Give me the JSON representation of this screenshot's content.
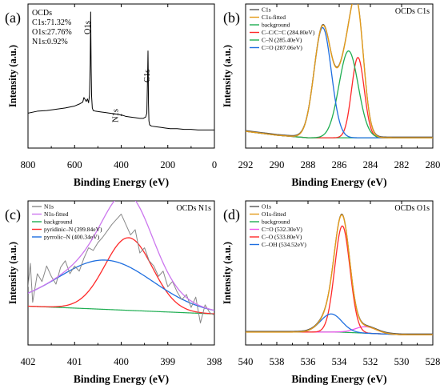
{
  "figure": {
    "panels": [
      {
        "id": "a",
        "label": "(a)",
        "title": "",
        "xlabel": "Binding Energy (eV)",
        "ylabel": "Intensity (a.u.)",
        "xticks": [
          "800",
          "600",
          "400",
          "200",
          "0"
        ],
        "annotations": [
          "OCDs",
          "C1s:71.32%",
          "O1s:27.76%",
          "N1s:0.92%"
        ],
        "peak_labels": [
          {
            "text": "O1s",
            "x": 531
          },
          {
            "text": "N1s",
            "x": 400
          },
          {
            "text": "C1s",
            "x": 285
          }
        ],
        "legend": []
      },
      {
        "id": "b",
        "label": "(b)",
        "title": "OCDs C1s",
        "xlabel": "Binding Energy (eV)",
        "ylabel": "Intensity (a.u.)",
        "xticks": [
          "292",
          "290",
          "288",
          "286",
          "284",
          "282",
          "280"
        ],
        "annotations": [],
        "peak_labels": [],
        "legend": [
          "C1s",
          "C1s-fitted",
          "background",
          "C–C/C=C (284.80eV)",
          "C–N (285.40eV)",
          "C=O (287.06eV)"
        ]
      },
      {
        "id": "c",
        "label": "(c)",
        "title": "OCDs N1s",
        "xlabel": "Binding Energy (eV)",
        "ylabel": "Intensity (a.u.)",
        "xticks": [
          "402",
          "401",
          "400",
          "399",
          "398"
        ],
        "annotations": [],
        "peak_labels": [],
        "legend": [
          "N1s",
          "N1s-fitted",
          "background",
          "pyridinic–N (399.84eV)",
          "pyrrolic–N (400.34eV)"
        ]
      },
      {
        "id": "d",
        "label": "(d)",
        "title": "OCDs O1s",
        "xlabel": "Binding Energy (eV)",
        "ylabel": "Intensity (a.u.)",
        "xticks": [
          "540",
          "538",
          "536",
          "534",
          "532",
          "530",
          "528"
        ],
        "annotations": [],
        "peak_labels": [],
        "legend": [
          "O1s",
          "O1s-fitted",
          "background",
          "C=O (532.30eV)",
          "C–O (533.80eV)",
          "C–OH (534.52eV)"
        ]
      }
    ]
  },
  "chart_data": [
    {
      "type": "line",
      "panel": "a",
      "title": "",
      "xlabel": "Binding Energy (eV)",
      "ylabel": "Intensity (a.u.)",
      "xlim": [
        800,
        0
      ],
      "ylim": [
        0,
        100
      ],
      "x_reversed": true,
      "series": [
        {
          "name": "",
          "color": "#000000",
          "x": [
            800,
            760,
            720,
            680,
            640,
            600,
            580,
            565,
            560,
            550,
            545,
            540,
            536,
            533,
            531,
            529,
            527,
            524,
            520,
            510,
            490,
            470,
            450,
            430,
            410,
            402,
            400,
            398,
            395,
            380,
            360,
            340,
            320,
            305,
            295,
            290,
            288,
            286,
            285,
            284,
            283,
            281,
            278,
            270,
            250,
            230,
            210,
            190,
            160,
            130,
            100,
            70,
            40,
            20,
            0
          ],
          "y": [
            22,
            23.5,
            24,
            25,
            26,
            27.5,
            29,
            30.5,
            34,
            31,
            33,
            30,
            36,
            60,
            100,
            58,
            35,
            26,
            24,
            23.5,
            23,
            22.5,
            22,
            21.5,
            21,
            20.5,
            21,
            20,
            20.5,
            19.5,
            19,
            18.5,
            18,
            18,
            19,
            22,
            40,
            58,
            70,
            55,
            30,
            16,
            13,
            12,
            11.5,
            11,
            10.5,
            10,
            10,
            9.5,
            9.5,
            9,
            9,
            9,
            9
          ]
        }
      ]
    },
    {
      "type": "line",
      "panel": "b",
      "title": "OCDs C1s",
      "xlabel": "Binding Energy (eV)",
      "ylabel": "Intensity (a.u.)",
      "xlim": [
        292,
        280
      ],
      "ylim": [
        0,
        100
      ],
      "x_reversed": true,
      "peaks": [
        {
          "name": "C–C/C=C (284.80eV)",
          "center": 284.8,
          "height": 62,
          "fwhm": 0.95,
          "color": "#ff2a2a"
        },
        {
          "name": "C–N (285.40eV)",
          "center": 285.4,
          "height": 67,
          "fwhm": 1.45,
          "color": "#1fae52"
        },
        {
          "name": "C=O (287.06eV)",
          "center": 287.06,
          "height": 85,
          "fwhm": 1.3,
          "color": "#1f6fe0"
        }
      ],
      "background": {
        "name": "background",
        "x": [
          292,
          290,
          288,
          287,
          286,
          285,
          284,
          282,
          281
        ],
        "y": [
          8,
          5,
          3,
          3,
          3,
          3,
          3,
          3,
          3
        ],
        "color": "#1fae52"
      },
      "series": [
        {
          "name": "C1s",
          "color": "#555555"
        },
        {
          "name": "C1s-fitted",
          "color": "#e39b1a"
        }
      ]
    },
    {
      "type": "line",
      "panel": "c",
      "title": "OCDs N1s",
      "xlabel": "Binding Energy (eV)",
      "ylabel": "Intensity (a.u.)",
      "xlim": [
        402,
        398
      ],
      "ylim": [
        0,
        100
      ],
      "x_reversed": true,
      "peaks": [
        {
          "name": "pyridinic–N (399.84eV)",
          "center": 399.84,
          "height": 56,
          "fwhm": 1.2,
          "color": "#ff2a2a"
        },
        {
          "name": "pyrrolic–N (400.34eV)",
          "center": 400.34,
          "height": 38,
          "fwhm": 2.4,
          "color": "#1f6fe0"
        }
      ],
      "background": {
        "name": "background",
        "x": [
          402,
          398
        ],
        "y": [
          25,
          19
        ],
        "color": "#1fae52"
      },
      "series": [
        {
          "name": "N1s",
          "color": "#888888",
          "x": [
            402.0,
            401.95,
            401.9,
            401.8,
            401.7,
            401.6,
            401.5,
            401.4,
            401.3,
            401.2,
            401.1,
            401.0,
            400.9,
            400.8,
            400.7,
            400.6,
            400.5,
            400.4,
            400.3,
            400.2,
            400.1,
            400.0,
            399.9,
            399.8,
            399.7,
            399.6,
            399.5,
            399.4,
            399.3,
            399.2,
            399.1,
            399.0,
            398.9,
            398.8,
            398.7,
            398.6,
            398.5,
            398.4,
            398.3,
            398.2,
            398.1,
            398.0
          ],
          "y": [
            40,
            58,
            28,
            50,
            44,
            56,
            48,
            42,
            55,
            60,
            50,
            56,
            52,
            62,
            70,
            68,
            74,
            78,
            83,
            88,
            92,
            96,
            88,
            80,
            84,
            66,
            70,
            60,
            56,
            48,
            52,
            40,
            44,
            36,
            30,
            34,
            24,
            32,
            12,
            26,
            20,
            18
          ]
        },
        {
          "name": "N1s-fitted",
          "color": "#cc77ee"
        }
      ]
    },
    {
      "type": "line",
      "panel": "d",
      "title": "OCDs O1s",
      "xlabel": "Binding Energy (eV)",
      "ylabel": "Intensity (a.u.)",
      "xlim": [
        540,
        528
      ],
      "ylim": [
        0,
        100
      ],
      "x_reversed": true,
      "peaks": [
        {
          "name": "C=O (532.30eV)",
          "center": 532.3,
          "height": 5,
          "fwhm": 1.6,
          "color": "#ee55ee"
        },
        {
          "name": "C–O (533.80eV)",
          "center": 533.8,
          "height": 82,
          "fwhm": 1.15,
          "color": "#ff2a2a"
        },
        {
          "name": "C–OH (534.52eV)",
          "center": 534.52,
          "height": 14,
          "fwhm": 1.6,
          "color": "#1f6fe0"
        }
      ],
      "background": {
        "name": "background",
        "x": [
          540,
          536,
          534,
          532,
          530,
          528
        ],
        "y": [
          5,
          5,
          5,
          4,
          3,
          3
        ],
        "color": "#1fae52"
      },
      "series": [
        {
          "name": "O1s",
          "color": "#555555"
        },
        {
          "name": "O1s-fitted",
          "color": "#e39b1a"
        }
      ]
    }
  ]
}
